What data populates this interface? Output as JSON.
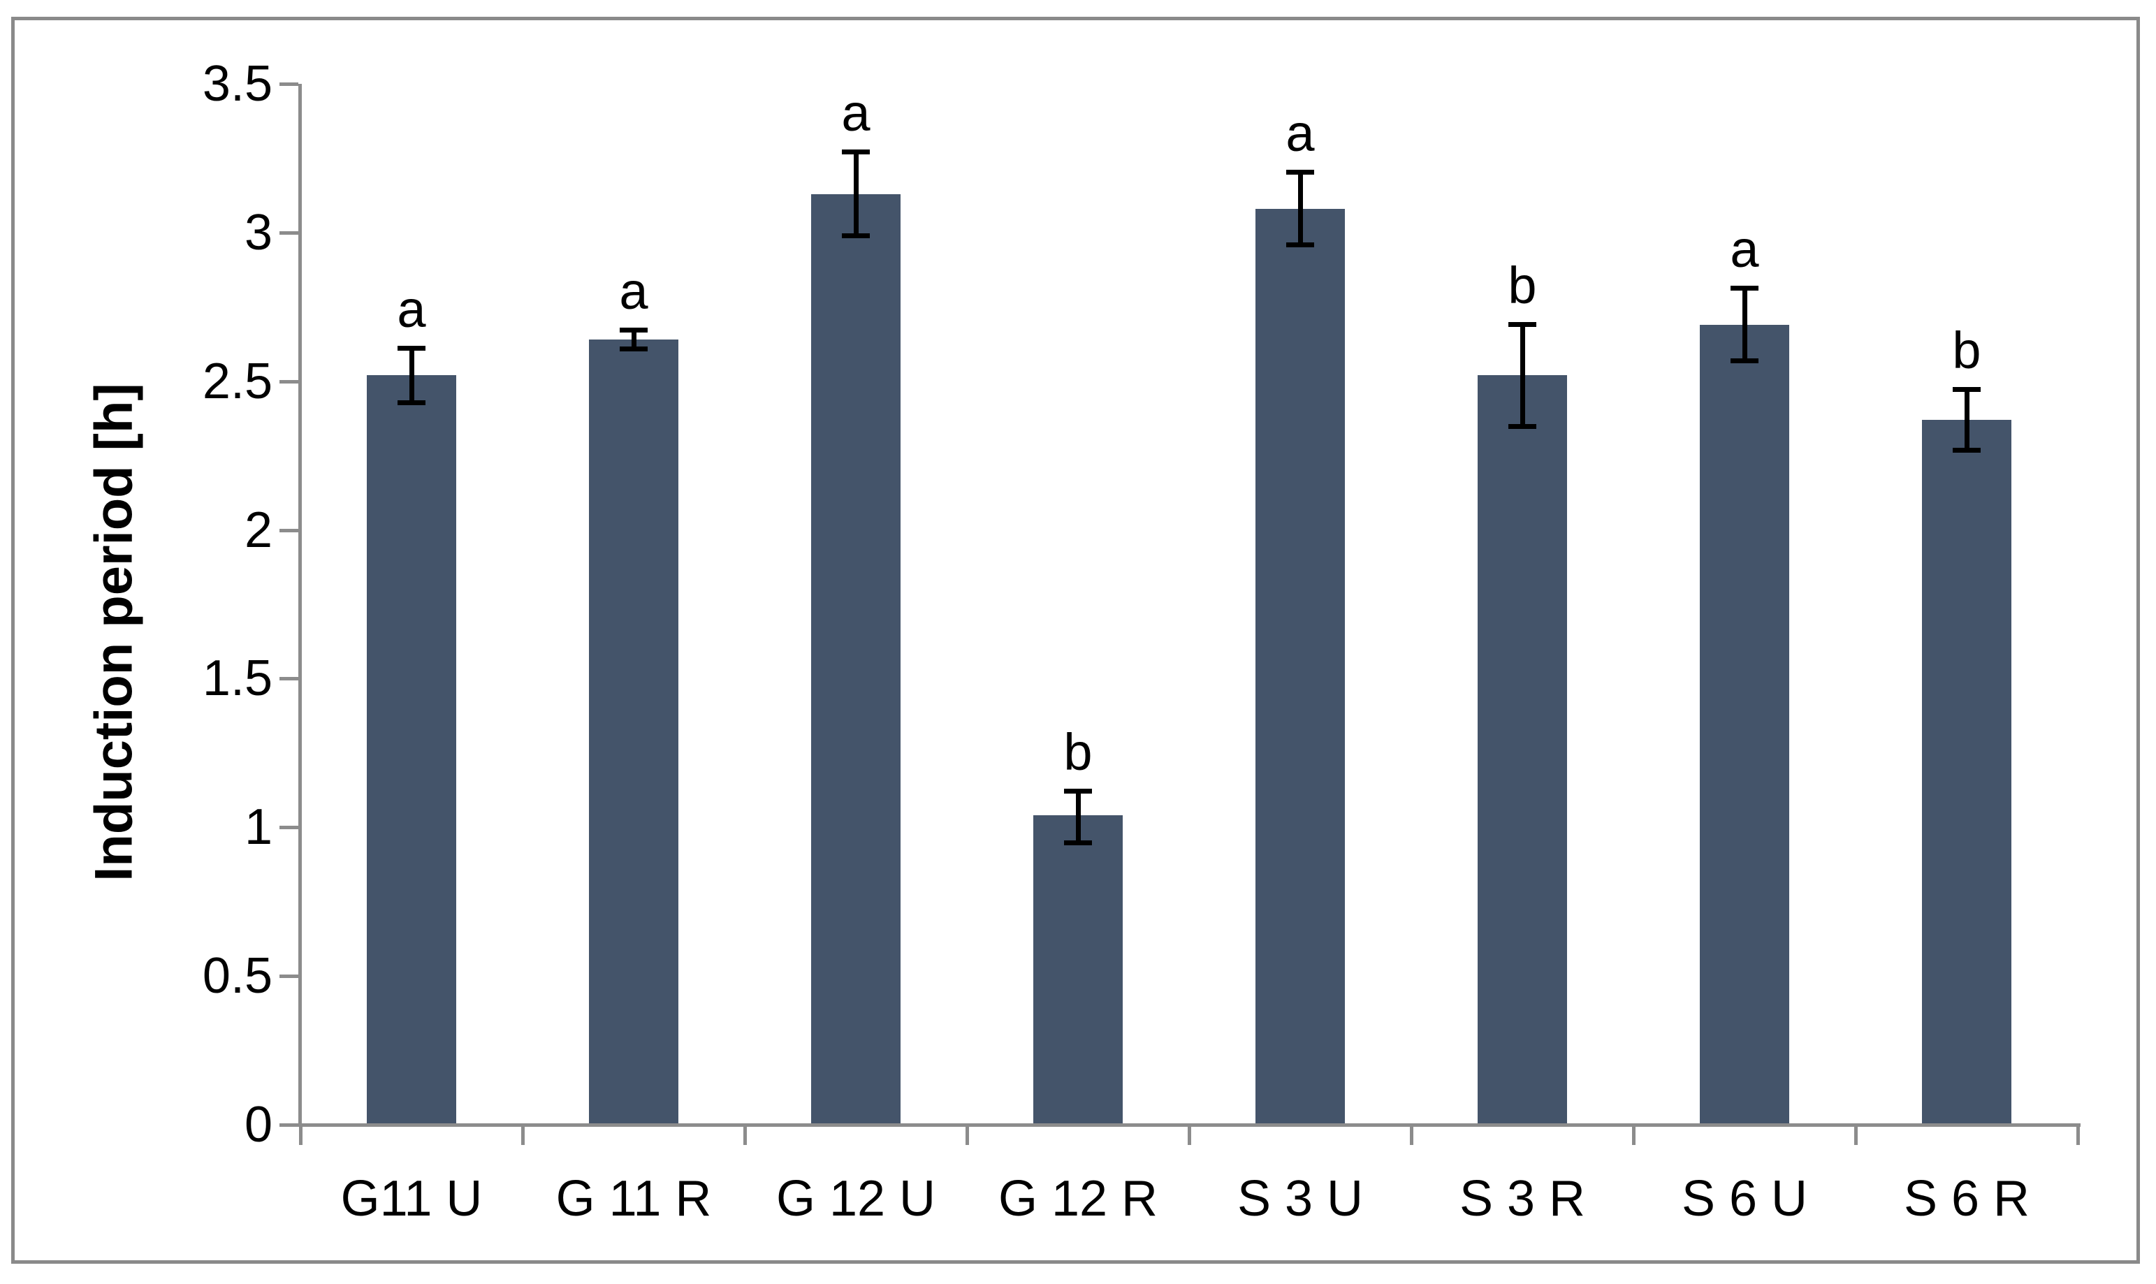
{
  "chart_data": {
    "type": "bar",
    "title": "",
    "ylabel": "Induction period [h]",
    "xlabel": "",
    "categories": [
      "G11 U",
      "G 11 R",
      "G 12 U",
      "G 12 R",
      "S 3 U",
      "S 3 R",
      "S 6 U",
      "S 6 R"
    ],
    "values": [
      2.52,
      2.64,
      3.13,
      1.04,
      3.08,
      2.52,
      2.69,
      2.37
    ],
    "error_plus": [
      0.1,
      0.04,
      0.15,
      0.09,
      0.13,
      0.18,
      0.13,
      0.11
    ],
    "error_minus": [
      0.1,
      0.04,
      0.15,
      0.1,
      0.13,
      0.18,
      0.13,
      0.11
    ],
    "significance_letters": [
      "a",
      "a",
      "a",
      "b",
      "a",
      "b",
      "a",
      "b"
    ],
    "ylim": [
      0,
      3.5
    ],
    "ytick_values": [
      3.5,
      3,
      2.5,
      2,
      1.5,
      1,
      0.5,
      0
    ],
    "ytick_labels": [
      "3.5",
      "3",
      "2.5",
      "2",
      "1.5",
      "1",
      "0.5",
      "0"
    ],
    "grid": false,
    "legend": "none",
    "colors": {
      "bar": "#44546A",
      "axis": "#8C8C8C",
      "frame": "#8A8A8A",
      "error": "#000000",
      "text": "#000000",
      "background": "#FFFFFF"
    }
  }
}
